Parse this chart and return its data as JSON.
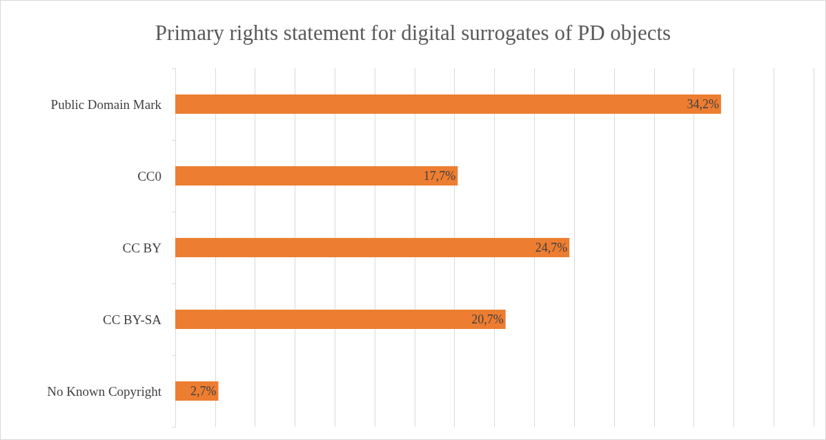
{
  "chart_data": {
    "type": "bar",
    "orientation": "horizontal",
    "title": "Primary rights statement for digital surrogates of PD objects",
    "categories": [
      "Public Domain Mark",
      "CC0",
      "CC BY",
      "CC BY-SA",
      "No Known Copyright"
    ],
    "values": [
      34.2,
      17.7,
      24.7,
      20.7,
      2.7
    ],
    "value_labels": [
      "34,2%",
      "17,7%",
      "24,7%",
      "20,7%",
      "2,7%"
    ],
    "color": "#ed7d31",
    "xlim": [
      0,
      40
    ],
    "xticks": [
      {
        "value": 0,
        "label": null
      },
      {
        "value": 2.5,
        "label": null
      },
      {
        "value": 5,
        "label": null
      },
      {
        "value": 7.5,
        "label": null
      },
      {
        "value": 10,
        "label": null
      },
      {
        "value": 12.5,
        "label": null
      },
      {
        "value": 15,
        "label": null
      },
      {
        "value": 17.5,
        "label": null
      },
      {
        "value": 20,
        "label": null
      },
      {
        "value": 22.5,
        "label": null
      },
      {
        "value": 25,
        "label": null
      },
      {
        "value": 27.5,
        "label": null
      },
      {
        "value": 30,
        "label": null
      },
      {
        "value": 32.5,
        "label": null
      },
      {
        "value": 35,
        "label": null
      },
      {
        "value": 37.5,
        "label": null
      },
      {
        "value": 40,
        "label": null
      }
    ],
    "grid": "x",
    "tick_labels": "y"
  }
}
